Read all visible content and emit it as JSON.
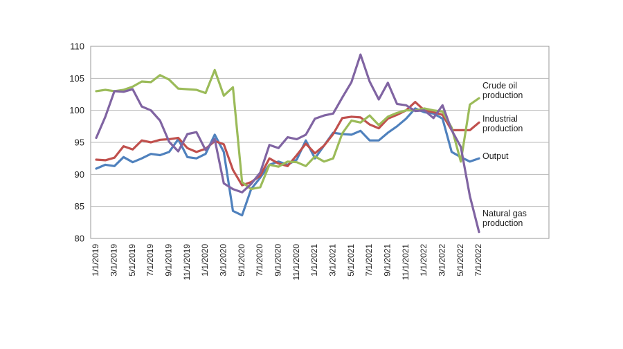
{
  "chart_data": {
    "type": "line",
    "title": "",
    "xlabel": "",
    "ylabel": "",
    "ylim": [
      80,
      110
    ],
    "yticks": [
      80,
      85,
      90,
      95,
      100,
      105,
      110
    ],
    "x": [
      "1/1/2019",
      "2/1/2019",
      "3/1/2019",
      "4/1/2019",
      "5/1/2019",
      "6/1/2019",
      "7/1/2019",
      "8/1/2019",
      "9/1/2019",
      "10/1/2019",
      "11/1/2019",
      "12/1/2019",
      "1/1/2020",
      "2/1/2020",
      "3/1/2020",
      "4/1/2020",
      "5/1/2020",
      "6/1/2020",
      "7/1/2020",
      "8/1/2020",
      "9/1/2020",
      "10/1/2020",
      "11/1/2020",
      "12/1/2020",
      "1/1/2021",
      "2/1/2021",
      "3/1/2021",
      "4/1/2021",
      "5/1/2021",
      "6/1/2021",
      "7/1/2021",
      "8/1/2021",
      "9/1/2021",
      "10/1/2021",
      "11/1/2021",
      "12/1/2021",
      "1/1/2022",
      "2/1/2022",
      "3/1/2022",
      "4/1/2022",
      "5/1/2022",
      "6/1/2022",
      "7/1/2022"
    ],
    "xtick_labels": [
      "1/1/2019",
      "3/1/2019",
      "5/1/2019",
      "7/1/2019",
      "9/1/2019",
      "11/1/2019",
      "1/1/2020",
      "3/1/2020",
      "5/1/2020",
      "7/1/2020",
      "9/1/2020",
      "11/1/2020",
      "1/1/2021",
      "3/1/2021",
      "5/1/2021",
      "7/1/2021",
      "9/1/2021",
      "11/1/2021",
      "1/1/2022",
      "3/1/2022",
      "5/1/2022",
      "7/1/2022"
    ],
    "grid": "horizontal",
    "series": [
      {
        "name": "Output",
        "label_lines": [
          "Output"
        ],
        "color": "#4f81bd",
        "values": [
          90.9,
          91.5,
          91.3,
          92.7,
          91.9,
          92.5,
          93.2,
          93.0,
          93.5,
          95.5,
          92.7,
          92.5,
          93.2,
          96.2,
          93.5,
          84.3,
          83.6,
          87.7,
          89.5,
          91.5,
          92.0,
          91.5,
          92.3,
          95.3,
          92.5,
          94.5,
          96.5,
          96.3,
          96.2,
          96.8,
          95.3,
          95.3,
          96.5,
          97.5,
          98.7,
          100.3,
          99.7,
          99.5,
          98.7,
          93.5,
          92.7,
          92.0,
          92.5
        ]
      },
      {
        "name": "Industrial production",
        "label_lines": [
          "Industrial",
          "production"
        ],
        "color": "#c0504d",
        "values": [
          92.3,
          92.2,
          92.6,
          94.4,
          93.9,
          95.3,
          95.0,
          95.4,
          95.5,
          95.7,
          94.1,
          93.5,
          94.0,
          95.2,
          94.7,
          90.7,
          88.3,
          88.8,
          89.8,
          92.5,
          91.7,
          91.3,
          93.0,
          94.8,
          93.3,
          94.5,
          96.3,
          98.8,
          99.0,
          98.9,
          97.8,
          97.2,
          98.7,
          99.3,
          100.0,
          101.3,
          100.0,
          99.7,
          99.3,
          96.9,
          96.9,
          96.9,
          98.1
        ]
      },
      {
        "name": "Crude oil production",
        "label_lines": [
          "Crude oil",
          "production"
        ],
        "color": "#9bbb59",
        "values": [
          103.0,
          103.2,
          103.0,
          103.2,
          103.7,
          104.5,
          104.4,
          105.5,
          104.8,
          103.4,
          103.3,
          103.2,
          102.7,
          106.3,
          102.3,
          103.6,
          88.8,
          87.7,
          88.0,
          91.5,
          91.2,
          92.0,
          91.9,
          91.3,
          92.8,
          92.0,
          92.5,
          96.4,
          98.4,
          98.1,
          99.2,
          97.7,
          99.0,
          99.6,
          100.0,
          100.0,
          100.3,
          100.0,
          99.8,
          97.3,
          92.0,
          100.9,
          101.9
        ]
      },
      {
        "name": "Natural gas production",
        "label_lines": [
          "Natural gas",
          "production"
        ],
        "color": "#8064a2",
        "values": [
          95.7,
          99.0,
          103.0,
          102.9,
          103.3,
          100.6,
          100.0,
          98.4,
          95.1,
          93.6,
          96.3,
          96.6,
          93.8,
          95.5,
          88.6,
          87.7,
          87.2,
          88.5,
          90.3,
          94.6,
          94.1,
          95.8,
          95.5,
          96.2,
          98.7,
          99.2,
          99.5,
          102.0,
          104.4,
          108.7,
          104.5,
          101.7,
          104.3,
          101.0,
          100.8,
          99.9,
          100.0,
          98.8,
          100.8,
          96.9,
          94.3,
          86.6,
          81.0
        ]
      }
    ]
  }
}
